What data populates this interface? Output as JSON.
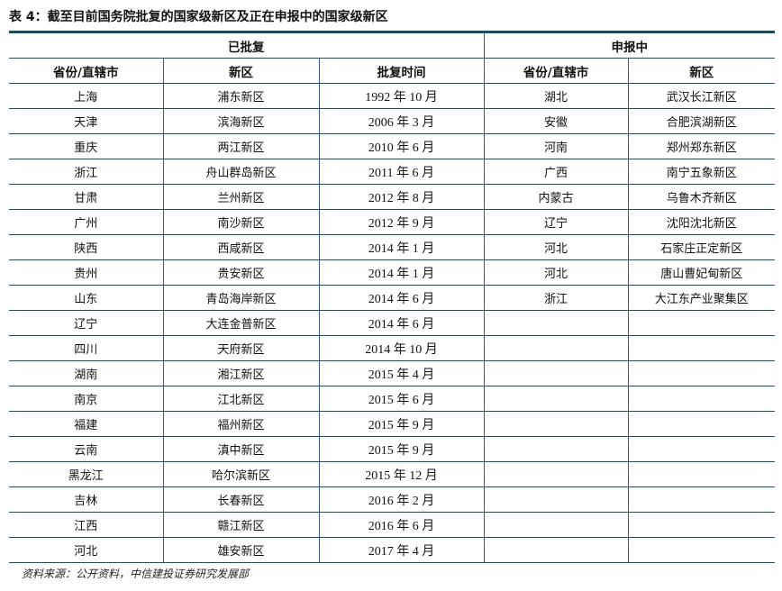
{
  "title": "表 4：截至目前国务院批复的国家级新区及正在申报中的国家级新区",
  "groups": {
    "approved": "已批复",
    "applying": "申报中"
  },
  "headers": [
    "省份/直辖市",
    "新区",
    "批复时间",
    "省份/直辖市",
    "新区"
  ],
  "approved": [
    [
      "上海",
      "浦东新区",
      "1992 年 10 月"
    ],
    [
      "天津",
      "滨海新区",
      "2006 年 3 月"
    ],
    [
      "重庆",
      "两江新区",
      "2010 年 6 月"
    ],
    [
      "浙江",
      "舟山群岛新区",
      "2011 年 6 月"
    ],
    [
      "甘肃",
      "兰州新区",
      "2012 年 8 月"
    ],
    [
      "广州",
      "南沙新区",
      "2012 年 9 月"
    ],
    [
      "陕西",
      "西咸新区",
      "2014 年 1 月"
    ],
    [
      "贵州",
      "贵安新区",
      "2014 年 1 月"
    ],
    [
      "山东",
      "青岛海岸新区",
      "2014 年 6 月"
    ],
    [
      "辽宁",
      "大连金普新区",
      "2014 年 6 月"
    ],
    [
      "四川",
      "天府新区",
      "2014 年 10 月"
    ],
    [
      "湖南",
      "湘江新区",
      "2015 年 4 月"
    ],
    [
      "南京",
      "江北新区",
      "2015 年 6 月"
    ],
    [
      "福建",
      "福州新区",
      "2015 年 9 月"
    ],
    [
      "云南",
      "滇中新区",
      "2015 年 9 月"
    ],
    [
      "黑龙江",
      "哈尔滨新区",
      "2015 年 12 月"
    ],
    [
      "吉林",
      "长春新区",
      "2016 年 2 月"
    ],
    [
      "江西",
      "赣江新区",
      "2016 年 6 月"
    ],
    [
      "河北",
      "雄安新区",
      "2017 年 4 月"
    ]
  ],
  "applying": [
    [
      "湖北",
      "武汉长江新区"
    ],
    [
      "安徽",
      "合肥滨湖新区"
    ],
    [
      "河南",
      "郑州郑东新区"
    ],
    [
      "广西",
      "南宁五象新区"
    ],
    [
      "内蒙古",
      "乌鲁木齐新区"
    ],
    [
      "辽宁",
      "沈阳沈北新区"
    ],
    [
      "河北",
      "石家庄正定新区"
    ],
    [
      "河北",
      "唐山曹妃甸新区"
    ],
    [
      "浙江",
      "大江东产业聚集区"
    ]
  ],
  "source": "资料来源：公开资料，中信建投证券研究发展部"
}
